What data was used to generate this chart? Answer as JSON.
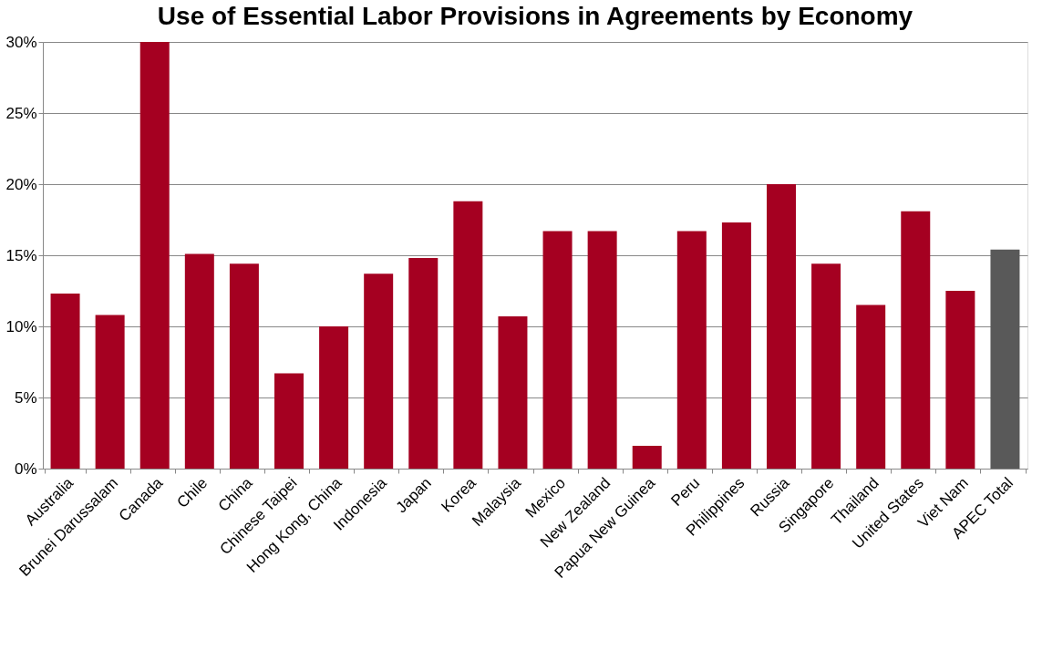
{
  "chart_data": {
    "type": "bar",
    "title": "Use of Essential Labor Provisions in Agreements by Economy",
    "categories": [
      "Australia",
      "Brunei Darussalam",
      "Canada",
      "Chile",
      "China",
      "Chinese Taipei",
      "Hong Kong, China",
      "Indonesia",
      "Japan",
      "Korea",
      "Malaysia",
      "Mexico",
      "New Zealand",
      "Papua New Guinea",
      "Peru",
      "Philippines",
      "Russia",
      "Singapore",
      "Thailand",
      "United States",
      "Viet Nam",
      "APEC Total"
    ],
    "values": [
      12.3,
      10.8,
      30,
      15.1,
      14.4,
      6.7,
      10.0,
      13.7,
      14.8,
      18.8,
      10.7,
      16.7,
      16.7,
      1.6,
      16.7,
      17.3,
      20,
      14.4,
      11.5,
      18.1,
      12.5,
      15.4
    ],
    "colors": [
      "#a50021",
      "#a50021",
      "#a50021",
      "#a50021",
      "#a50021",
      "#a50021",
      "#a50021",
      "#a50021",
      "#a50021",
      "#a50021",
      "#a50021",
      "#a50021",
      "#a50021",
      "#a50021",
      "#a50021",
      "#a50021",
      "#a50021",
      "#a50021",
      "#a50021",
      "#a50021",
      "#a50021",
      "#595959"
    ],
    "ylim": [
      0,
      30
    ],
    "yticks": [
      {
        "value": 0,
        "label": "0%"
      },
      {
        "value": 5,
        "label": "5%"
      },
      {
        "value": 10,
        "label": "10%"
      },
      {
        "value": 15,
        "label": "15%"
      },
      {
        "value": 20,
        "label": "20%"
      },
      {
        "value": 25,
        "label": "25%"
      },
      {
        "value": 30,
        "label": "30%"
      }
    ],
    "grid": "y",
    "legend": false
  }
}
